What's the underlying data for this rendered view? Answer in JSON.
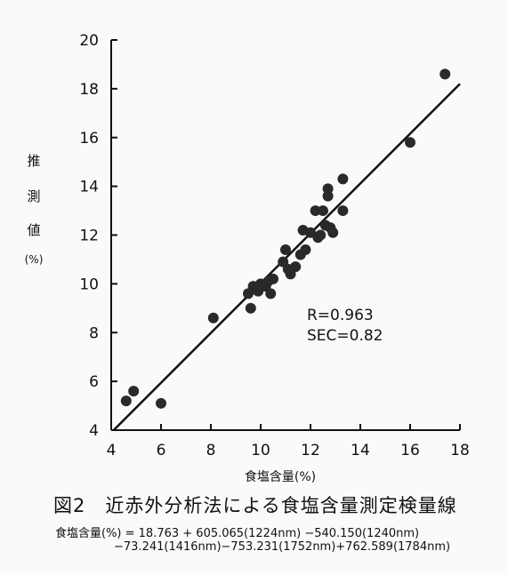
{
  "chart_data": {
    "type": "scatter",
    "ylabel_chars": [
      "推",
      "測",
      "値",
      "(%)"
    ],
    "xlabel": "食塩含量(%)",
    "xlim": [
      4,
      18
    ],
    "ylim": [
      4,
      20
    ],
    "xticks": [
      4,
      6,
      8,
      10,
      12,
      14,
      16,
      18
    ],
    "yticks": [
      4,
      6,
      8,
      10,
      12,
      14,
      16,
      18,
      20
    ],
    "annotations": [
      "R=0.963",
      "SEC=0.82"
    ],
    "regression_line": [
      [
        4.1,
        4.0
      ],
      [
        18.0,
        18.2
      ]
    ],
    "points": [
      {
        "x": 4.6,
        "y": 5.2
      },
      {
        "x": 4.9,
        "y": 5.6
      },
      {
        "x": 6.0,
        "y": 5.1
      },
      {
        "x": 8.1,
        "y": 8.6
      },
      {
        "x": 9.5,
        "y": 9.6
      },
      {
        "x": 9.6,
        "y": 9.0
      },
      {
        "x": 9.7,
        "y": 9.9
      },
      {
        "x": 9.9,
        "y": 9.7
      },
      {
        "x": 10.0,
        "y": 10.0
      },
      {
        "x": 10.2,
        "y": 9.9
      },
      {
        "x": 10.3,
        "y": 10.1
      },
      {
        "x": 10.4,
        "y": 9.6
      },
      {
        "x": 10.5,
        "y": 10.2
      },
      {
        "x": 10.9,
        "y": 10.9
      },
      {
        "x": 11.0,
        "y": 11.4
      },
      {
        "x": 11.1,
        "y": 10.6
      },
      {
        "x": 11.2,
        "y": 10.4
      },
      {
        "x": 11.4,
        "y": 10.7
      },
      {
        "x": 11.6,
        "y": 11.2
      },
      {
        "x": 11.7,
        "y": 12.2
      },
      {
        "x": 11.8,
        "y": 11.4
      },
      {
        "x": 12.0,
        "y": 12.1
      },
      {
        "x": 12.2,
        "y": 13.0
      },
      {
        "x": 12.3,
        "y": 11.9
      },
      {
        "x": 12.4,
        "y": 12.0
      },
      {
        "x": 12.5,
        "y": 13.0
      },
      {
        "x": 12.6,
        "y": 12.4
      },
      {
        "x": 12.7,
        "y": 13.6
      },
      {
        "x": 12.7,
        "y": 13.9
      },
      {
        "x": 12.8,
        "y": 12.3
      },
      {
        "x": 12.9,
        "y": 12.1
      },
      {
        "x": 13.3,
        "y": 13.0
      },
      {
        "x": 13.3,
        "y": 14.3
      },
      {
        "x": 16.0,
        "y": 15.8
      },
      {
        "x": 17.4,
        "y": 18.6
      }
    ]
  },
  "caption": "図2　近赤外分析法による食塩含量測定検量線",
  "formula_line1": "食塩含量(%) = 18.763 + 605.065(1224nm) −540.150(1240nm)",
  "formula_line2": "−73.241(1416nm)−753.231(1752nm)+762.589(1784nm)"
}
